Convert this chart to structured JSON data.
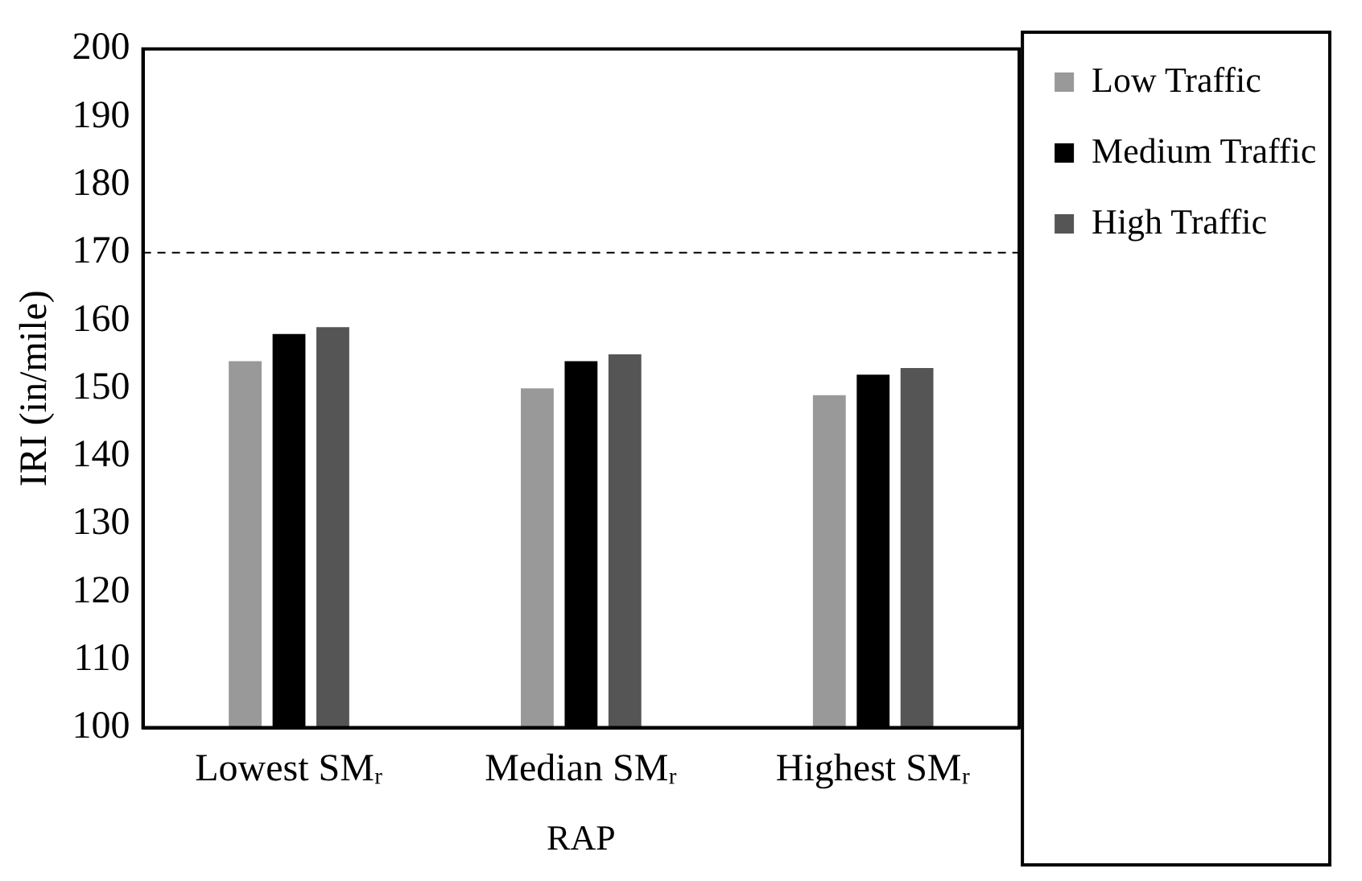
{
  "chart_data": {
    "type": "bar",
    "xlabel": "RAP",
    "ylabel": "IRI (in/mile)",
    "categories": [
      "Lowest SMᵣ",
      "Median SMᵣ",
      "Highest SMᵣ"
    ],
    "series": [
      {
        "name": "Low Traffic",
        "color": "#999999",
        "values": [
          154,
          150,
          149
        ]
      },
      {
        "name": "Medium Traffic",
        "color": "#000000",
        "values": [
          158,
          154,
          152
        ]
      },
      {
        "name": "High Traffic",
        "color": "#555555",
        "values": [
          159,
          155,
          153
        ]
      }
    ],
    "ylim": [
      100,
      200
    ],
    "yticks": [
      100,
      110,
      120,
      130,
      140,
      150,
      160,
      170,
      180,
      190,
      200
    ],
    "ref_lines": [
      {
        "axis": "y",
        "value": 170,
        "line_style": "dashed",
        "color": "#000000"
      }
    ],
    "grid": false,
    "legend": "right"
  }
}
